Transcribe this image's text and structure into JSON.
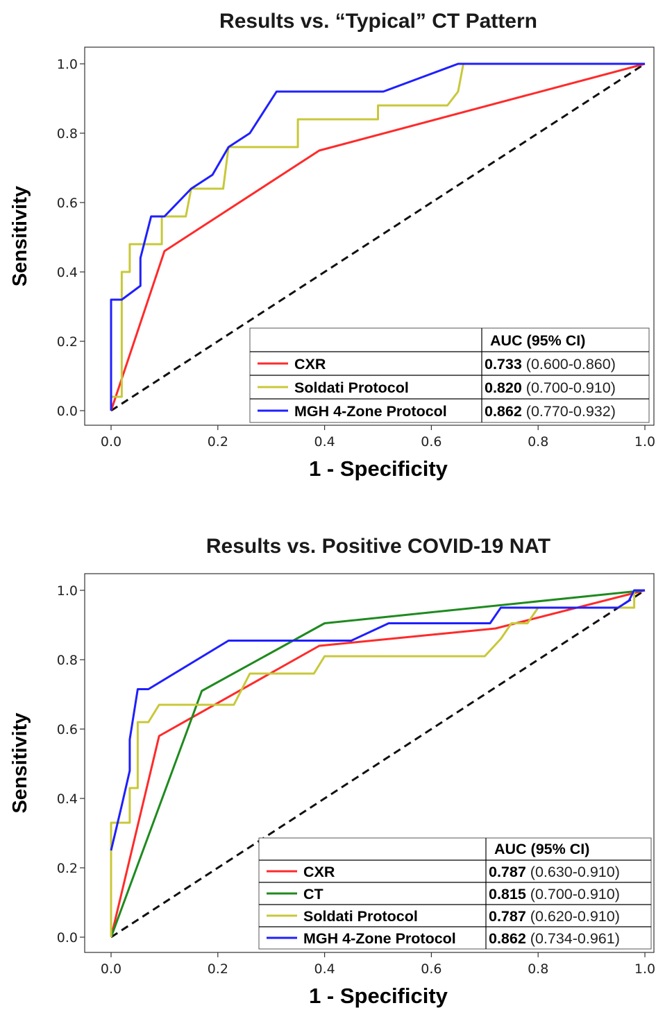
{
  "colors": {
    "CXR": "#ff2a2a",
    "CT": "#1f8a1f",
    "Soldati Protocol": "#c8c83a",
    "MGH 4-Zone Protocol": "#1f1fff",
    "diagonal": "#111111"
  },
  "chart_data": [
    {
      "type": "line",
      "title": "Results vs. “Typical” CT Pattern",
      "xlabel": "1 - Specificity",
      "ylabel": "Sensitivity",
      "xlim": [
        0,
        1
      ],
      "ylim": [
        0,
        1
      ],
      "xticks": [
        "0.0",
        "0.2",
        "0.4",
        "0.6",
        "0.8",
        "1.0"
      ],
      "yticks": [
        "0.0",
        "0.2",
        "0.4",
        "0.6",
        "0.8",
        "1.0"
      ],
      "legend_header": "AUC (95% CI)",
      "legend_position": "bottom-right",
      "series": [
        {
          "name": "CXR",
          "auc": "0.733",
          "ci": "(0.600-0.860)",
          "x": [
            0,
            0.1,
            0.39,
            1
          ],
          "y": [
            0,
            0.46,
            0.75,
            1
          ]
        },
        {
          "name": "Soldati Protocol",
          "auc": "0.820",
          "ci": "(0.700-0.910)",
          "x": [
            0,
            0,
            0.02,
            0.02,
            0.02,
            0.035,
            0.035,
            0.095,
            0.095,
            0.14,
            0.15,
            0.21,
            0.22,
            0.35,
            0.35,
            0.5,
            0.5,
            0.63,
            0.65,
            0.66,
            1
          ],
          "y": [
            0,
            0.04,
            0.04,
            0.32,
            0.4,
            0.4,
            0.48,
            0.48,
            0.56,
            0.56,
            0.64,
            0.64,
            0.76,
            0.76,
            0.84,
            0.84,
            0.88,
            0.88,
            0.92,
            1,
            1
          ]
        },
        {
          "name": "MGH 4-Zone Protocol",
          "auc": "0.862",
          "ci": "(0.770-0.932)",
          "x": [
            0,
            0,
            0.02,
            0.055,
            0.055,
            0.075,
            0.1,
            0.15,
            0.19,
            0.22,
            0.26,
            0.31,
            0.51,
            0.58,
            0.65,
            1
          ],
          "y": [
            0,
            0.32,
            0.32,
            0.36,
            0.44,
            0.56,
            0.56,
            0.64,
            0.68,
            0.76,
            0.8,
            0.92,
            0.92,
            0.96,
            1,
            1
          ]
        }
      ]
    },
    {
      "type": "line",
      "title": "Results vs. Positive COVID-19 NAT",
      "xlabel": "1 - Specificity",
      "ylabel": "Sensitivity",
      "xlim": [
        0,
        1
      ],
      "ylim": [
        0,
        1
      ],
      "xticks": [
        "0.0",
        "0.2",
        "0.4",
        "0.6",
        "0.8",
        "1.0"
      ],
      "yticks": [
        "0.0",
        "0.2",
        "0.4",
        "0.6",
        "0.8",
        "1.0"
      ],
      "legend_header": "AUC (95% CI)",
      "legend_position": "bottom-right",
      "series": [
        {
          "name": "CXR",
          "auc": "0.787",
          "ci": "(0.630-0.910)",
          "x": [
            0,
            0.09,
            0.39,
            0.72,
            1
          ],
          "y": [
            0,
            0.58,
            0.84,
            0.89,
            1
          ]
        },
        {
          "name": "CT",
          "auc": "0.815",
          "ci": "(0.700-0.910)",
          "x": [
            0,
            0.17,
            0.4,
            1
          ],
          "y": [
            0,
            0.71,
            0.905,
            1
          ]
        },
        {
          "name": "Soldati Protocol",
          "auc": "0.787",
          "ci": "(0.620-0.910)",
          "x": [
            0,
            0,
            0.035,
            0.035,
            0.05,
            0.05,
            0.07,
            0.09,
            0.23,
            0.26,
            0.38,
            0.4,
            0.7,
            0.73,
            0.75,
            0.78,
            0.8,
            0.98,
            0.98,
            1
          ],
          "y": [
            0,
            0.33,
            0.33,
            0.43,
            0.43,
            0.62,
            0.62,
            0.67,
            0.67,
            0.76,
            0.76,
            0.81,
            0.81,
            0.86,
            0.905,
            0.905,
            0.95,
            0.95,
            1,
            1
          ]
        },
        {
          "name": "MGH 4-Zone Protocol",
          "auc": "0.862",
          "ci": "(0.734-0.961)",
          "x": [
            0,
            0.02,
            0.035,
            0.035,
            0.05,
            0.07,
            0.22,
            0.45,
            0.52,
            0.71,
            0.73,
            0.95,
            0.97,
            0.98,
            1
          ],
          "y": [
            0.25,
            0.38,
            0.48,
            0.57,
            0.715,
            0.715,
            0.855,
            0.855,
            0.905,
            0.905,
            0.95,
            0.95,
            0.97,
            1,
            1
          ]
        }
      ]
    }
  ]
}
